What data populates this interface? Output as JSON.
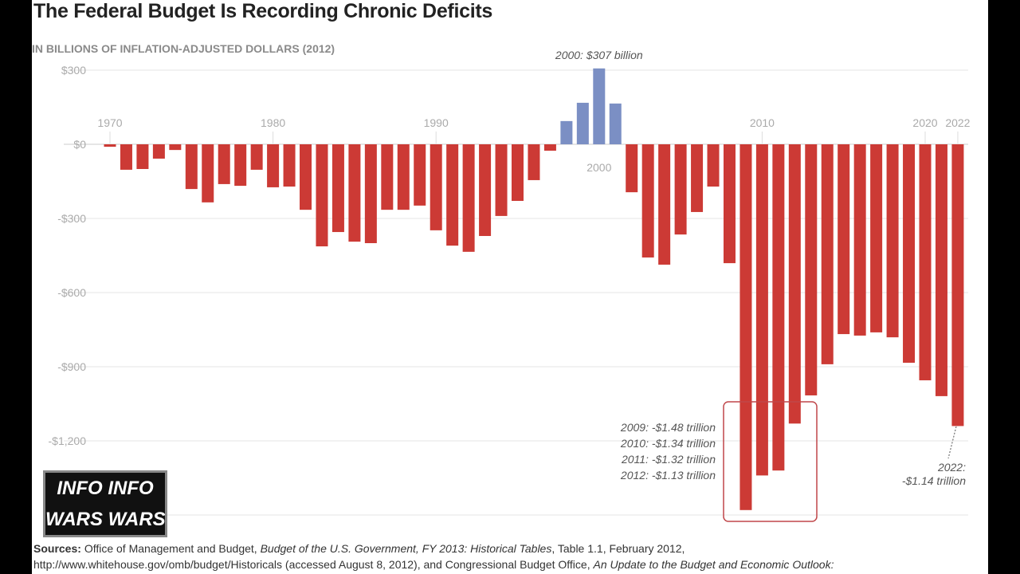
{
  "chart_data": {
    "type": "bar",
    "title": "The Federal Budget Is Recording Chronic Deficits",
    "subtitle": "IN BILLIONS OF INFLATION-ADJUSTED DOLLARS (2012)",
    "years": [
      1970,
      1971,
      1972,
      1973,
      1974,
      1975,
      1976,
      1977,
      1978,
      1979,
      1980,
      1981,
      1982,
      1983,
      1984,
      1985,
      1986,
      1987,
      1988,
      1989,
      1990,
      1991,
      1992,
      1993,
      1994,
      1995,
      1996,
      1997,
      1998,
      1999,
      2000,
      2001,
      2002,
      2003,
      2004,
      2005,
      2006,
      2007,
      2008,
      2009,
      2010,
      2011,
      2012,
      2013,
      2014,
      2015,
      2016,
      2017,
      2018,
      2019,
      2020,
      2021,
      2022
    ],
    "values": [
      -10,
      -103,
      -100,
      -58,
      -23,
      -181,
      -235,
      -161,
      -168,
      -103,
      -174,
      -171,
      -265,
      -413,
      -355,
      -394,
      -400,
      -265,
      -265,
      -248,
      -348,
      -410,
      -435,
      -371,
      -290,
      -229,
      -145,
      -26,
      94,
      168,
      307,
      165,
      -194,
      -458,
      -487,
      -365,
      -274,
      -171,
      -481,
      -1480,
      -1340,
      -1320,
      -1130,
      -1016,
      -890,
      -768,
      -774,
      -761,
      -781,
      -884,
      -955,
      -1019,
      -1140
    ],
    "ylim": [
      -1500,
      310
    ],
    "yticks": [
      {
        "v": 300,
        "label": "$300"
      },
      {
        "v": 0,
        "label": "$0"
      },
      {
        "v": -300,
        "label": "-$300"
      },
      {
        "v": -600,
        "label": "-$600"
      },
      {
        "v": -900,
        "label": "-$900"
      },
      {
        "v": -1200,
        "label": "-$1,200"
      }
    ],
    "xtick_labels": [
      {
        "year": 1970,
        "label": "1970"
      },
      {
        "year": 1980,
        "label": "1980"
      },
      {
        "year": 1990,
        "label": "1990"
      },
      {
        "year": 2000,
        "label": "2000"
      },
      {
        "year": 2010,
        "label": "2010"
      },
      {
        "year": 2020,
        "label": "2020"
      },
      {
        "year": 2022,
        "label": "2022"
      }
    ],
    "colors": {
      "surplus": "#7b8fc4",
      "deficit": "#cc3a35",
      "grid": "#e6e6e6",
      "box": "#c0474a"
    },
    "grid": true,
    "annotations": {
      "peak": "2000: $307 billion",
      "box_lines": [
        "2009: -$1.48 trillion",
        "2010: -$1.34 trillion",
        "2011: -$1.32 trillion",
        "2012: -$1.13 trillion"
      ],
      "last_lines": [
        "2022:",
        "-$1.14 trillion"
      ]
    }
  },
  "sources": {
    "label": "Sources:",
    "line1_a": "Office of Management and Budget, ",
    "line1_b": "Budget of the U.S. Government, FY 2013: Historical Tables",
    "line1_c": ", Table 1.1, February 2012,",
    "line2_a": "http://www.whitehouse.gov/omb/budget/Historicals (accessed August 8, 2012), and Congressional Budget Office, ",
    "line2_b": "An Update to the Budget and Economic Outlook:"
  },
  "logo": {
    "line1": "INFO INFO",
    "line2": "WARS WARS"
  }
}
